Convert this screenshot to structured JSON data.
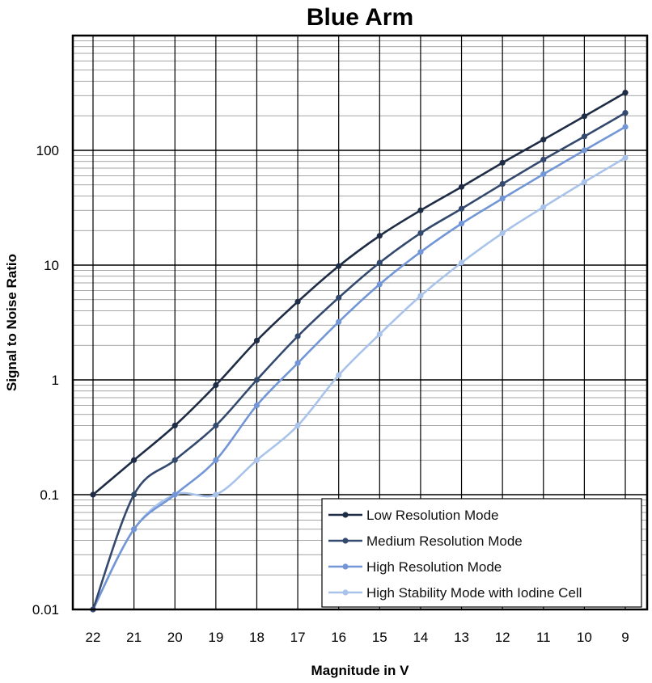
{
  "chart_data": {
    "type": "line",
    "title": "Blue Arm",
    "xlabel": "Magnitude in V",
    "ylabel": "Signal to Noise Ratio",
    "yscale": "log",
    "ylim": [
      0.01,
      1000
    ],
    "x_reversed": true,
    "x": [
      22,
      21,
      20,
      19,
      18,
      17,
      16,
      15,
      14,
      13,
      12,
      11,
      10,
      9
    ],
    "x_tick_labels": [
      "22",
      "21",
      "20",
      "19",
      "18",
      "17",
      "16",
      "15",
      "14",
      "13",
      "12",
      "11",
      "10",
      "9"
    ],
    "y_tick_labels": [
      "0.01",
      "0.1",
      "1",
      "10",
      "100"
    ],
    "y_tick_values": [
      0.01,
      0.1,
      1,
      10,
      100
    ],
    "grid": true,
    "legend_position": "bottom-right",
    "series": [
      {
        "name": "Low Resolution Mode",
        "color": "#1e2d45",
        "values": [
          0.1,
          0.2,
          0.4,
          0.9,
          2.2,
          4.8,
          9.8,
          18,
          30,
          48,
          78,
          124,
          198,
          318
        ]
      },
      {
        "name": "Medium Resolution Mode",
        "color": "#34496e",
        "values": [
          0.01,
          0.1,
          0.2,
          0.4,
          1.0,
          2.4,
          5.2,
          10.5,
          19,
          31,
          51,
          83,
          132,
          212
        ]
      },
      {
        "name": "High Resolution Mode",
        "color": "#7396d6",
        "values": [
          0.01,
          0.05,
          0.1,
          0.2,
          0.6,
          1.4,
          3.2,
          6.8,
          13,
          23,
          38,
          62,
          100,
          160
        ]
      },
      {
        "name": "High Stability Mode with Iodine Cell",
        "color": "#a9c3ea",
        "values": [
          0.01,
          0.05,
          0.1,
          0.1,
          0.2,
          0.4,
          1.1,
          2.5,
          5.4,
          10.5,
          19,
          32,
          53,
          86
        ]
      }
    ]
  }
}
